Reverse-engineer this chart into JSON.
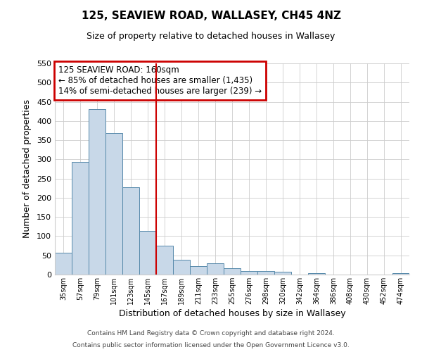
{
  "title": "125, SEAVIEW ROAD, WALLASEY, CH45 4NZ",
  "subtitle": "Size of property relative to detached houses in Wallasey",
  "xlabel": "Distribution of detached houses by size in Wallasey",
  "ylabel": "Number of detached properties",
  "bar_labels": [
    "35sqm",
    "57sqm",
    "79sqm",
    "101sqm",
    "123sqm",
    "145sqm",
    "167sqm",
    "189sqm",
    "211sqm",
    "233sqm",
    "255sqm",
    "276sqm",
    "298sqm",
    "320sqm",
    "342sqm",
    "364sqm",
    "386sqm",
    "408sqm",
    "430sqm",
    "452sqm",
    "474sqm"
  ],
  "bar_values": [
    57,
    293,
    430,
    368,
    227,
    113,
    75,
    38,
    22,
    29,
    17,
    10,
    10,
    8,
    0,
    3,
    0,
    0,
    0,
    0,
    3
  ],
  "bar_color": "#c8d8e8",
  "bar_edge_color": "#5588aa",
  "vline_color": "#cc0000",
  "annotation_title": "125 SEAVIEW ROAD: 160sqm",
  "annotation_line1": "← 85% of detached houses are smaller (1,435)",
  "annotation_line2": "14% of semi-detached houses are larger (239) →",
  "annotation_box_color": "#cc0000",
  "ylim": [
    0,
    550
  ],
  "yticks": [
    0,
    50,
    100,
    150,
    200,
    250,
    300,
    350,
    400,
    450,
    500,
    550
  ],
  "footer1": "Contains HM Land Registry data © Crown copyright and database right 2024.",
  "footer2": "Contains public sector information licensed under the Open Government Licence v3.0.",
  "bg_color": "#ffffff",
  "grid_color": "#cccccc"
}
